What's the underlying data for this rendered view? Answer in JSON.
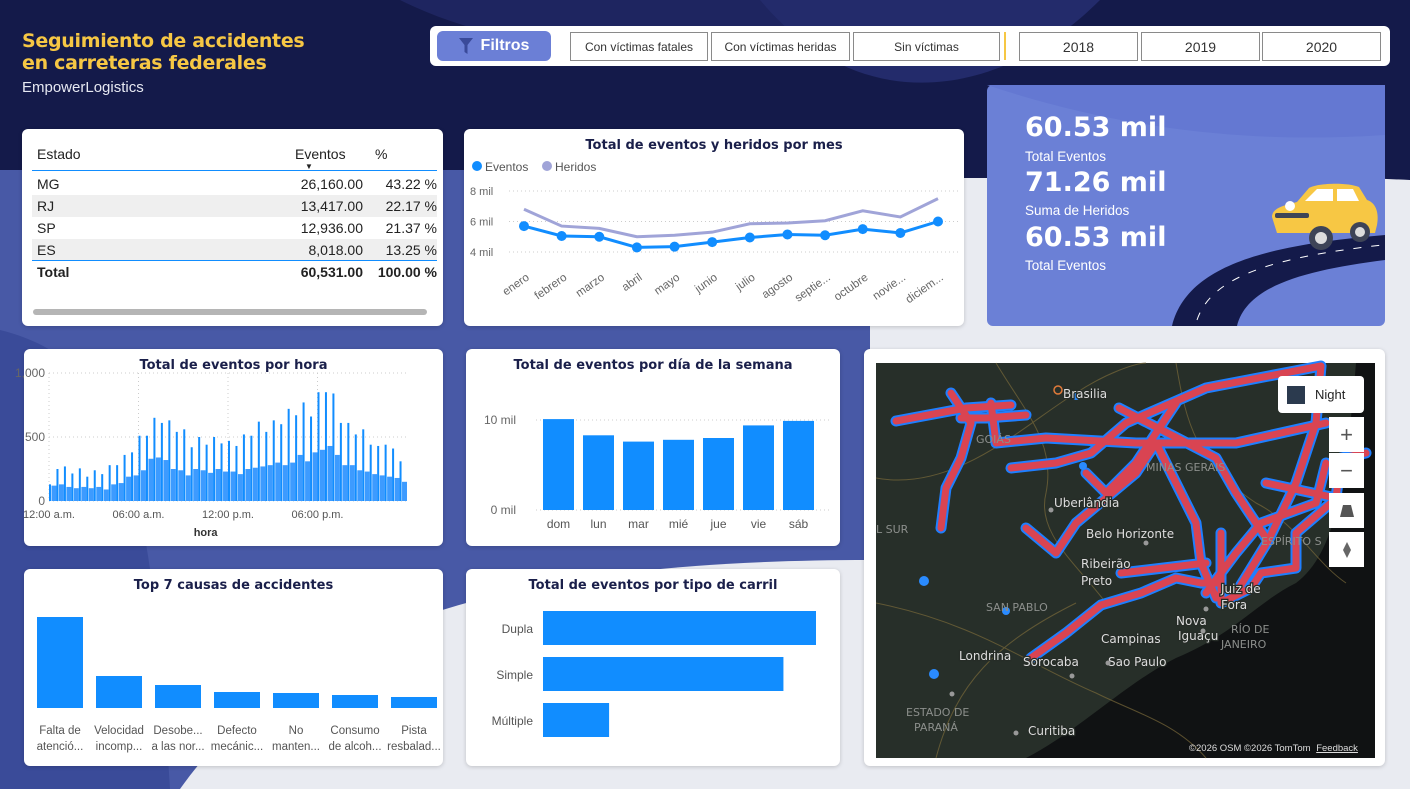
{
  "header": {
    "title_line1": "Seguimiento de accidentes",
    "title_line2": "en carreteras federales",
    "subtitle": "EmpowerLogistics"
  },
  "filters": {
    "label": "Filtros",
    "icon": "filter-icon",
    "victim_buttons": [
      "Con víctimas fatales",
      "Con víctimas heridas",
      "Sin víctimas"
    ],
    "years": [
      "2018",
      "2019",
      "2020"
    ]
  },
  "colors": {
    "accent": "#118dff",
    "secondary": "#a0a4d8",
    "title_yellow": "#f6c744",
    "navy": "#141a4a",
    "kpi_bg": "#6b80d6",
    "road": "#d94452"
  },
  "table": {
    "headers": [
      "Estado",
      "Eventos",
      "%"
    ],
    "sort_column": "Eventos",
    "rows": [
      [
        "MG",
        "26,160.00",
        "43.22 %"
      ],
      [
        "RJ",
        "13,417.00",
        "22.17 %"
      ],
      [
        "SP",
        "12,936.00",
        "21.37 %"
      ],
      [
        "ES",
        "8,018.00",
        "13.25 %"
      ]
    ],
    "total": [
      "Total",
      "60,531.00",
      "100.00 %"
    ]
  },
  "kpi": {
    "items": [
      {
        "value": "60.53 mil",
        "label": "Total Eventos"
      },
      {
        "value": "71.26 mil",
        "label": "Suma de Heridos"
      },
      {
        "value": "60.53 mil",
        "label": "Total Eventos"
      }
    ]
  },
  "chart_data": [
    {
      "type": "line",
      "title": "Total de eventos y heridos por mes",
      "categories": [
        "enero",
        "febrero",
        "marzo",
        "abril",
        "mayo",
        "junio",
        "julio",
        "agosto",
        "septie...",
        "octubre",
        "novie...",
        "diciem..."
      ],
      "yticks": [
        "4 mil",
        "6 mil",
        "8 mil"
      ],
      "ylim": [
        2.8,
        8.3
      ],
      "legend": "top-left",
      "series": [
        {
          "name": "Eventos",
          "color": "#118dff",
          "values": [
            5.7,
            5.05,
            5.0,
            4.3,
            4.35,
            4.65,
            4.95,
            5.15,
            5.1,
            5.5,
            5.25,
            6.0
          ]
        },
        {
          "name": "Heridos",
          "color": "#a0a4d8",
          "values": [
            6.8,
            5.7,
            5.55,
            5.0,
            5.1,
            5.3,
            5.85,
            5.9,
            6.05,
            6.7,
            6.3,
            7.5
          ]
        }
      ]
    },
    {
      "type": "bar",
      "title": "Total de eventos por hora",
      "xlabel": "hora",
      "xticks": [
        "12:00 a.m.",
        "06:00 a.m.",
        "12:00 p.m.",
        "06:00 p.m."
      ],
      "yticks": [
        "0",
        "500",
        "1,000"
      ],
      "ylim": [
        0,
        1000
      ],
      "peaks_per_half_hour": [
        130,
        250,
        270,
        215,
        255,
        190,
        240,
        210,
        280,
        280,
        360,
        380,
        510,
        510,
        650,
        610,
        630,
        540,
        560,
        420,
        500,
        440,
        500,
        450,
        470,
        430,
        520,
        510,
        620,
        540,
        630,
        600,
        720,
        670,
        770,
        660,
        850,
        850,
        840,
        610,
        610,
        520,
        560,
        440,
        430,
        440,
        410,
        310
      ],
      "base_per_half_hour": [
        120,
        130,
        110,
        100,
        110,
        100,
        110,
        90,
        130,
        140,
        190,
        200,
        240,
        330,
        340,
        320,
        250,
        240,
        200,
        250,
        240,
        220,
        250,
        230,
        230,
        210,
        250,
        260,
        270,
        280,
        300,
        280,
        300,
        360,
        310,
        380,
        400,
        430,
        360,
        280,
        280,
        240,
        230,
        210,
        200,
        190,
        180,
        150
      ]
    },
    {
      "type": "bar",
      "title": "Total de eventos por día de la semana",
      "categories": [
        "dom",
        "lun",
        "mar",
        "mié",
        "jue",
        "vie",
        "sáb"
      ],
      "values": [
        10.1,
        8.3,
        7.6,
        7.8,
        8.0,
        9.4,
        9.9
      ],
      "yticks": [
        "0 mil",
        "10 mil"
      ],
      "ylim": [
        0,
        11
      ]
    },
    {
      "type": "bar",
      "title": "Top 7 causas de accidentes",
      "categories": [
        [
          "Falta de",
          "atenció..."
        ],
        [
          "Velocidad",
          "incomp..."
        ],
        [
          "Desobe...",
          "a las nor..."
        ],
        [
          "Defecto",
          "mecánic..."
        ],
        [
          "No",
          "manten..."
        ],
        [
          "Consumo",
          "de alcoh..."
        ],
        [
          "Pista",
          "resbalad..."
        ]
      ],
      "values": [
        18200,
        6400,
        4600,
        3200,
        3000,
        2600,
        2200
      ]
    },
    {
      "type": "bar",
      "orientation": "horizontal",
      "title": "Total de eventos por tipo de carril",
      "categories": [
        "Dupla",
        "Simple",
        "Múltiple"
      ],
      "values": [
        28500,
        25100,
        6900
      ]
    }
  ],
  "map": {
    "style_button": "Night",
    "cities": [
      "Brasilia",
      "Uberlândia",
      "Belo Horizonte",
      "Ribeirão",
      "Preto",
      "Juiz de",
      "Fora",
      "Nova",
      "Iguaçu",
      "Campinas",
      "Sao Paulo",
      "Londrina",
      "Sorocaba",
      "Curitiba"
    ],
    "regions": [
      "GOIÁS",
      "MINAS GERAIS",
      "L SUR",
      "ESPÍRITO S",
      "SAN PABLO",
      "RÍO DE",
      "JANEIRO",
      "ESTADO DE",
      "PARANÁ"
    ],
    "attribution": "©2026 OSM  ©2026 TomTom",
    "feedback": "Feedback"
  }
}
